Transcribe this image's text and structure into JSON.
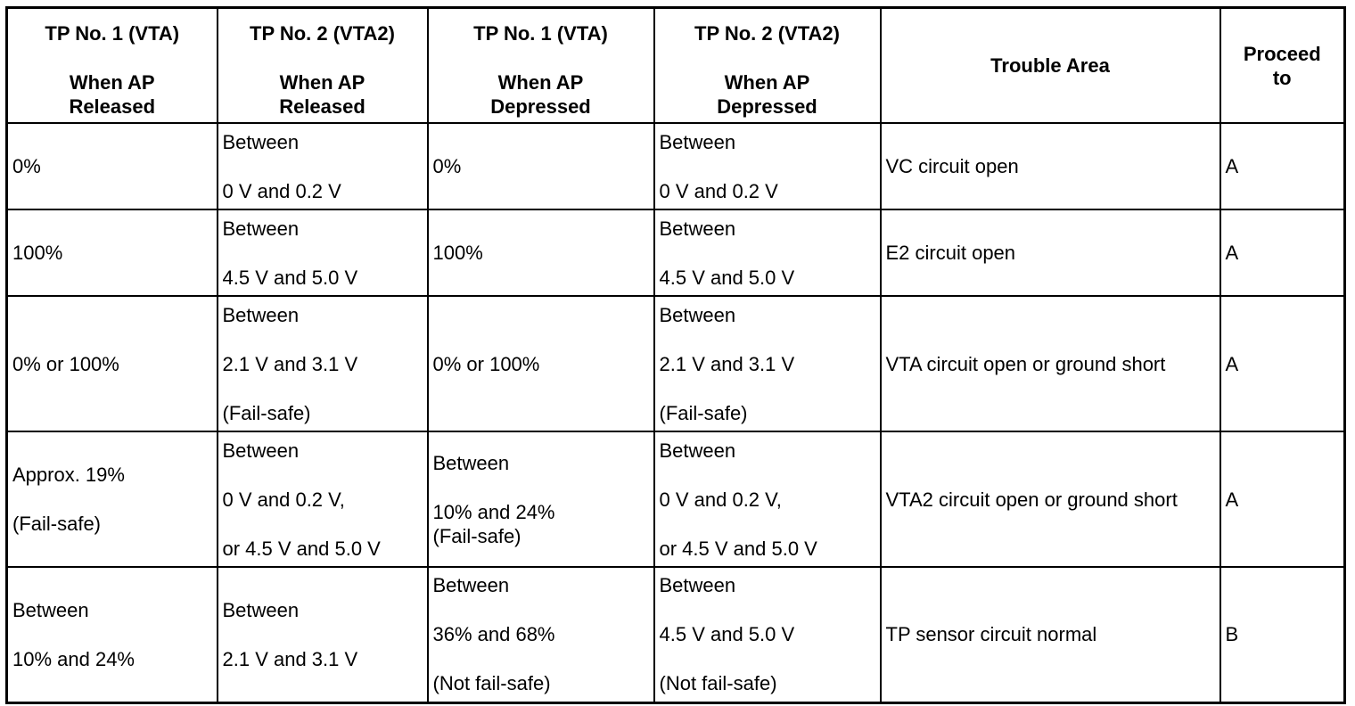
{
  "table": {
    "headers": [
      {
        "line1": "TP No. 1 (VTA)",
        "line2": "When AP",
        "line3": "Released"
      },
      {
        "line1": "TP No. 2 (VTA2)",
        "line2": "When AP",
        "line3": "Released"
      },
      {
        "line1": "TP No. 1 (VTA)",
        "line2": "When AP",
        "line3": "Depressed"
      },
      {
        "line1": "TP No. 2 (VTA2)",
        "line2": "When AP",
        "line3": "Depressed"
      },
      {
        "line1": "Trouble Area"
      },
      {
        "line1": "Proceed",
        "line2": "to"
      }
    ],
    "rows": [
      {
        "tp1_released": [
          "0%"
        ],
        "tp2_released": [
          "Between",
          "0 V and 0.2 V"
        ],
        "tp1_depressed": [
          "0%"
        ],
        "tp2_depressed": [
          "Between",
          "0 V and 0.2 V"
        ],
        "trouble_area": "VC circuit open",
        "proceed_to": "A"
      },
      {
        "tp1_released": [
          "100%"
        ],
        "tp2_released": [
          "Between",
          "4.5 V and 5.0 V"
        ],
        "tp1_depressed": [
          "100%"
        ],
        "tp2_depressed": [
          "Between",
          "4.5 V and 5.0 V"
        ],
        "trouble_area": "E2 circuit open",
        "proceed_to": "A"
      },
      {
        "tp1_released": [
          "0% or 100%"
        ],
        "tp2_released": [
          "Between",
          "2.1 V and 3.1 V",
          "(Fail-safe)"
        ],
        "tp1_depressed": [
          "0% or 100%"
        ],
        "tp2_depressed": [
          "Between",
          "2.1 V and 3.1 V",
          "(Fail-safe)"
        ],
        "trouble_area": "VTA circuit open or ground short",
        "proceed_to": "A"
      },
      {
        "tp1_released": [
          "Approx. 19%",
          "(Fail-safe)"
        ],
        "tp2_released": [
          "Between",
          "0 V and 0.2 V,",
          "or 4.5 V and 5.0 V"
        ],
        "tp1_depressed": [
          "Between",
          "10% and 24%",
          "(Fail-safe)"
        ],
        "tp2_depressed": [
          "Between",
          "0 V and 0.2 V,",
          "or 4.5 V and 5.0 V"
        ],
        "trouble_area": "VTA2 circuit open or ground short",
        "proceed_to": "A"
      },
      {
        "tp1_released": [
          "Between",
          "10% and 24%"
        ],
        "tp2_released": [
          "Between",
          "2.1 V and 3.1 V"
        ],
        "tp1_depressed": [
          "Between",
          "36% and 68%",
          "(Not fail-safe)"
        ],
        "tp2_depressed": [
          "Between",
          "4.5 V and 5.0 V",
          "(Not fail-safe)"
        ],
        "trouble_area": "TP sensor circuit normal",
        "proceed_to": "B"
      }
    ]
  }
}
